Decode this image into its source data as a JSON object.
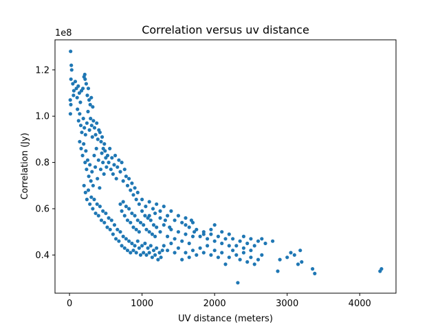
{
  "chart_data": {
    "type": "scatter",
    "title": "Correlation versus uv distance",
    "xlabel": "UV distance (meters)",
    "ylabel": "Correlation (Jy)",
    "y_multiplier_label": "1e8",
    "xlim": [
      -200,
      4500
    ],
    "ylim": [
      0.235,
      1.33
    ],
    "x_ticks": [
      0,
      1000,
      2000,
      3000,
      4000
    ],
    "x_tick_labels": [
      "0",
      "1000",
      "2000",
      "3000",
      "4000"
    ],
    "y_ticks": [
      0.4,
      0.6,
      0.8,
      1.0,
      1.2
    ],
    "y_tick_labels": [
      "0.4",
      "0.6",
      "0.8",
      "1.0",
      "1.2"
    ],
    "grid": false,
    "marker_color": "#1f77b4",
    "points": [
      [
        15,
        1.28
      ],
      [
        25,
        1.22
      ],
      [
        30,
        1.2
      ],
      [
        20,
        1.16
      ],
      [
        45,
        1.14
      ],
      [
        10,
        1.07
      ],
      [
        18,
        1.05
      ],
      [
        12,
        1.01
      ],
      [
        55,
        1.09
      ],
      [
        60,
        1.11
      ],
      [
        80,
        1.15
      ],
      [
        95,
        1.12
      ],
      [
        105,
        1.08
      ],
      [
        120,
        1.13
      ],
      [
        135,
        1.1
      ],
      [
        150,
        1.06
      ],
      [
        165,
        1.11
      ],
      [
        185,
        1.12
      ],
      [
        200,
        1.17
      ],
      [
        210,
        1.18
      ],
      [
        215,
        1.16
      ],
      [
        230,
        1.14
      ],
      [
        245,
        1.09
      ],
      [
        260,
        1.12
      ],
      [
        270,
        1.07
      ],
      [
        285,
        1.05
      ],
      [
        300,
        1.08
      ],
      [
        320,
        1.04
      ],
      [
        110,
        1.03
      ],
      [
        125,
        0.98
      ],
      [
        140,
        1.01
      ],
      [
        155,
        0.96
      ],
      [
        170,
        0.93
      ],
      [
        190,
        0.99
      ],
      [
        205,
        0.95
      ],
      [
        220,
        0.92
      ],
      [
        240,
        0.97
      ],
      [
        255,
        1.02
      ],
      [
        275,
        0.94
      ],
      [
        290,
        0.99
      ],
      [
        305,
        0.96
      ],
      [
        315,
        0.91
      ],
      [
        330,
        0.98
      ],
      [
        345,
        0.95
      ],
      [
        360,
        0.92
      ],
      [
        375,
        0.97
      ],
      [
        390,
        0.9
      ],
      [
        405,
        0.94
      ],
      [
        420,
        0.93
      ],
      [
        435,
        0.89
      ],
      [
        450,
        0.91
      ],
      [
        465,
        0.86
      ],
      [
        480,
        0.88
      ],
      [
        140,
        0.89
      ],
      [
        160,
        0.86
      ],
      [
        180,
        0.83
      ],
      [
        195,
        0.88
      ],
      [
        215,
        0.8
      ],
      [
        225,
        0.85
      ],
      [
        235,
        0.77
      ],
      [
        250,
        0.81
      ],
      [
        265,
        0.74
      ],
      [
        280,
        0.79
      ],
      [
        295,
        0.72
      ],
      [
        310,
        0.76
      ],
      [
        325,
        0.7
      ],
      [
        340,
        0.83
      ],
      [
        355,
        0.78
      ],
      [
        370,
        0.86
      ],
      [
        385,
        0.73
      ],
      [
        400,
        0.81
      ],
      [
        415,
        0.69
      ],
      [
        430,
        0.77
      ],
      [
        445,
        0.84
      ],
      [
        460,
        0.8
      ],
      [
        475,
        0.75
      ],
      [
        490,
        0.85
      ],
      [
        500,
        0.82
      ],
      [
        510,
        0.78
      ],
      [
        525,
        0.83
      ],
      [
        540,
        0.8
      ],
      [
        555,
        0.86
      ],
      [
        570,
        0.77
      ],
      [
        585,
        0.82
      ],
      [
        600,
        0.75
      ],
      [
        615,
        0.79
      ],
      [
        630,
        0.83
      ],
      [
        645,
        0.73
      ],
      [
        660,
        0.78
      ],
      [
        680,
        0.81
      ],
      [
        700,
        0.76
      ],
      [
        720,
        0.8
      ],
      [
        740,
        0.72
      ],
      [
        760,
        0.77
      ],
      [
        780,
        0.74
      ],
      [
        800,
        0.7
      ],
      [
        820,
        0.73
      ],
      [
        840,
        0.68
      ],
      [
        860,
        0.71
      ],
      [
        880,
        0.66
      ],
      [
        900,
        0.69
      ],
      [
        920,
        0.64
      ],
      [
        940,
        0.67
      ],
      [
        960,
        0.62
      ],
      [
        200,
        0.7
      ],
      [
        220,
        0.67
      ],
      [
        240,
        0.64
      ],
      [
        260,
        0.68
      ],
      [
        280,
        0.62
      ],
      [
        300,
        0.65
      ],
      [
        320,
        0.6
      ],
      [
        340,
        0.64
      ],
      [
        360,
        0.58
      ],
      [
        380,
        0.62
      ],
      [
        400,
        0.57
      ],
      [
        420,
        0.61
      ],
      [
        440,
        0.55
      ],
      [
        460,
        0.59
      ],
      [
        480,
        0.54
      ],
      [
        500,
        0.58
      ],
      [
        520,
        0.52
      ],
      [
        540,
        0.56
      ],
      [
        560,
        0.51
      ],
      [
        580,
        0.55
      ],
      [
        600,
        0.49
      ],
      [
        620,
        0.53
      ],
      [
        640,
        0.47
      ],
      [
        660,
        0.51
      ],
      [
        680,
        0.46
      ],
      [
        700,
        0.5
      ],
      [
        720,
        0.44
      ],
      [
        740,
        0.48
      ],
      [
        760,
        0.43
      ],
      [
        780,
        0.47
      ],
      [
        800,
        0.42
      ],
      [
        820,
        0.46
      ],
      [
        840,
        0.41
      ],
      [
        860,
        0.45
      ],
      [
        880,
        0.42
      ],
      [
        900,
        0.44
      ],
      [
        920,
        0.41
      ],
      [
        940,
        0.46
      ],
      [
        960,
        0.43
      ],
      [
        980,
        0.4
      ],
      [
        1000,
        0.44
      ],
      [
        1020,
        0.41
      ],
      [
        1040,
        0.45
      ],
      [
        1060,
        0.4
      ],
      [
        1080,
        0.43
      ],
      [
        1100,
        0.41
      ],
      [
        1120,
        0.44
      ],
      [
        1140,
        0.39
      ],
      [
        1160,
        0.42
      ],
      [
        1180,
        0.4
      ],
      [
        1200,
        0.43
      ],
      [
        1220,
        0.38
      ],
      [
        1240,
        0.41
      ],
      [
        1260,
        0.39
      ],
      [
        1280,
        0.42
      ],
      [
        700,
        0.62
      ],
      [
        720,
        0.59
      ],
      [
        740,
        0.63
      ],
      [
        760,
        0.57
      ],
      [
        780,
        0.61
      ],
      [
        800,
        0.55
      ],
      [
        820,
        0.6
      ],
      [
        840,
        0.54
      ],
      [
        860,
        0.58
      ],
      [
        880,
        0.52
      ],
      [
        900,
        0.57
      ],
      [
        920,
        0.51
      ],
      [
        940,
        0.55
      ],
      [
        960,
        0.5
      ],
      [
        980,
        0.54
      ],
      [
        1000,
        0.59
      ],
      [
        1020,
        0.53
      ],
      [
        1040,
        0.57
      ],
      [
        1060,
        0.51
      ],
      [
        1080,
        0.56
      ],
      [
        1100,
        0.5
      ],
      [
        1120,
        0.55
      ],
      [
        1140,
        0.49
      ],
      [
        1160,
        0.53
      ],
      [
        1180,
        0.48
      ],
      [
        1200,
        0.52
      ],
      [
        1000,
        0.64
      ],
      [
        1050,
        0.61
      ],
      [
        1100,
        0.63
      ],
      [
        1150,
        0.6
      ],
      [
        1200,
        0.62
      ],
      [
        1250,
        0.59
      ],
      [
        1300,
        0.61
      ],
      [
        1350,
        0.57
      ],
      [
        1400,
        0.59
      ],
      [
        1450,
        0.55
      ],
      [
        1500,
        0.57
      ],
      [
        1550,
        0.54
      ],
      [
        1600,
        0.56
      ],
      [
        1650,
        0.52
      ],
      [
        1700,
        0.54
      ],
      [
        1250,
        0.5
      ],
      [
        1300,
        0.53
      ],
      [
        1350,
        0.48
      ],
      [
        1400,
        0.51
      ],
      [
        1450,
        0.47
      ],
      [
        1500,
        0.5
      ],
      [
        1550,
        0.46
      ],
      [
        1600,
        0.49
      ],
      [
        1650,
        0.45
      ],
      [
        1700,
        0.48
      ],
      [
        1300,
        0.44
      ],
      [
        1350,
        0.42
      ],
      [
        1400,
        0.45
      ],
      [
        1450,
        0.41
      ],
      [
        1500,
        0.43
      ],
      [
        1550,
        0.38
      ],
      [
        1600,
        0.41
      ],
      [
        1650,
        0.39
      ],
      [
        1700,
        0.42
      ],
      [
        1750,
        0.4
      ],
      [
        1750,
        0.51
      ],
      [
        1800,
        0.48
      ],
      [
        1850,
        0.5
      ],
      [
        1900,
        0.47
      ],
      [
        1950,
        0.49
      ],
      [
        2000,
        0.46
      ],
      [
        2050,
        0.48
      ],
      [
        2100,
        0.45
      ],
      [
        2150,
        0.47
      ],
      [
        2200,
        0.44
      ],
      [
        1800,
        0.43
      ],
      [
        1850,
        0.41
      ],
      [
        1900,
        0.44
      ],
      [
        1950,
        0.4
      ],
      [
        2000,
        0.42
      ],
      [
        2050,
        0.39
      ],
      [
        2100,
        0.41
      ],
      [
        2150,
        0.36
      ],
      [
        2200,
        0.39
      ],
      [
        2250,
        0.42
      ],
      [
        2250,
        0.47
      ],
      [
        2300,
        0.44
      ],
      [
        2350,
        0.46
      ],
      [
        2400,
        0.43
      ],
      [
        2450,
        0.45
      ],
      [
        2500,
        0.42
      ],
      [
        2550,
        0.44
      ],
      [
        2600,
        0.46
      ],
      [
        2650,
        0.47
      ],
      [
        2700,
        0.45
      ],
      [
        2300,
        0.4
      ],
      [
        2350,
        0.38
      ],
      [
        2400,
        0.41
      ],
      [
        2450,
        0.37
      ],
      [
        2500,
        0.39
      ],
      [
        2550,
        0.36
      ],
      [
        2600,
        0.38
      ],
      [
        2650,
        0.4
      ],
      [
        2320,
        0.28
      ],
      [
        2870,
        0.33
      ],
      [
        2900,
        0.38
      ],
      [
        3000,
        0.39
      ],
      [
        3050,
        0.41
      ],
      [
        3100,
        0.4
      ],
      [
        3150,
        0.36
      ],
      [
        3180,
        0.42
      ],
      [
        3200,
        0.37
      ],
      [
        3350,
        0.34
      ],
      [
        3380,
        0.32
      ],
      [
        4280,
        0.33
      ],
      [
        4300,
        0.34
      ],
      [
        2000,
        0.53
      ],
      [
        1950,
        0.51
      ],
      [
        2100,
        0.5
      ],
      [
        2200,
        0.49
      ],
      [
        1850,
        0.49
      ],
      [
        2400,
        0.48
      ],
      [
        2500,
        0.47
      ],
      [
        2800,
        0.46
      ],
      [
        1680,
        0.55
      ],
      [
        1600,
        0.53
      ],
      [
        1720,
        0.5
      ],
      [
        1100,
        0.57
      ],
      [
        1180,
        0.58
      ],
      [
        1250,
        0.56
      ],
      [
        1320,
        0.55
      ],
      [
        1380,
        0.52
      ]
    ]
  }
}
